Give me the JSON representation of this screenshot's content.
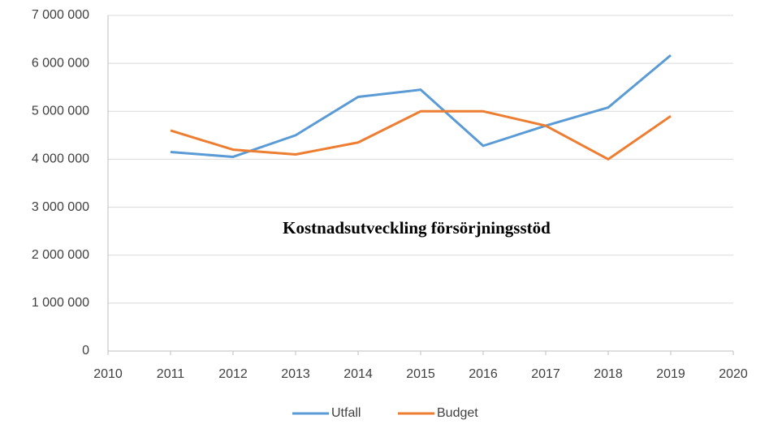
{
  "chart_data": {
    "type": "line",
    "title": "Kostnadsutveckling försörjningsstöd",
    "x": [
      2011,
      2012,
      2013,
      2014,
      2015,
      2016,
      2017,
      2018,
      2019
    ],
    "series": [
      {
        "name": "Utfall",
        "color": "#5b9bd5",
        "values": [
          4150000,
          4050000,
          4500000,
          5300000,
          5450000,
          4280000,
          4700000,
          5080000,
          6170000
        ]
      },
      {
        "name": "Budget",
        "color": "#ed7d31",
        "values": [
          4600000,
          4200000,
          4100000,
          4350000,
          5000000,
          5000000,
          4700000,
          4000000,
          4900000
        ]
      }
    ],
    "xlim": [
      2010,
      2020
    ],
    "xticks": [
      2010,
      2011,
      2012,
      2013,
      2014,
      2015,
      2016,
      2017,
      2018,
      2019,
      2020
    ],
    "ylim": [
      0,
      7000000
    ],
    "yticks": [
      {
        "value": 0,
        "label": "0"
      },
      {
        "value": 1000000,
        "label": "1 000 000"
      },
      {
        "value": 2000000,
        "label": "2 000 000"
      },
      {
        "value": 3000000,
        "label": "3 000 000"
      },
      {
        "value": 4000000,
        "label": "4 000 000"
      },
      {
        "value": 5000000,
        "label": "5 000 000"
      },
      {
        "value": 6000000,
        "label": "6 000 000"
      },
      {
        "value": 7000000,
        "label": "7 000 000"
      }
    ],
    "grid": true,
    "legend": "bottom"
  }
}
